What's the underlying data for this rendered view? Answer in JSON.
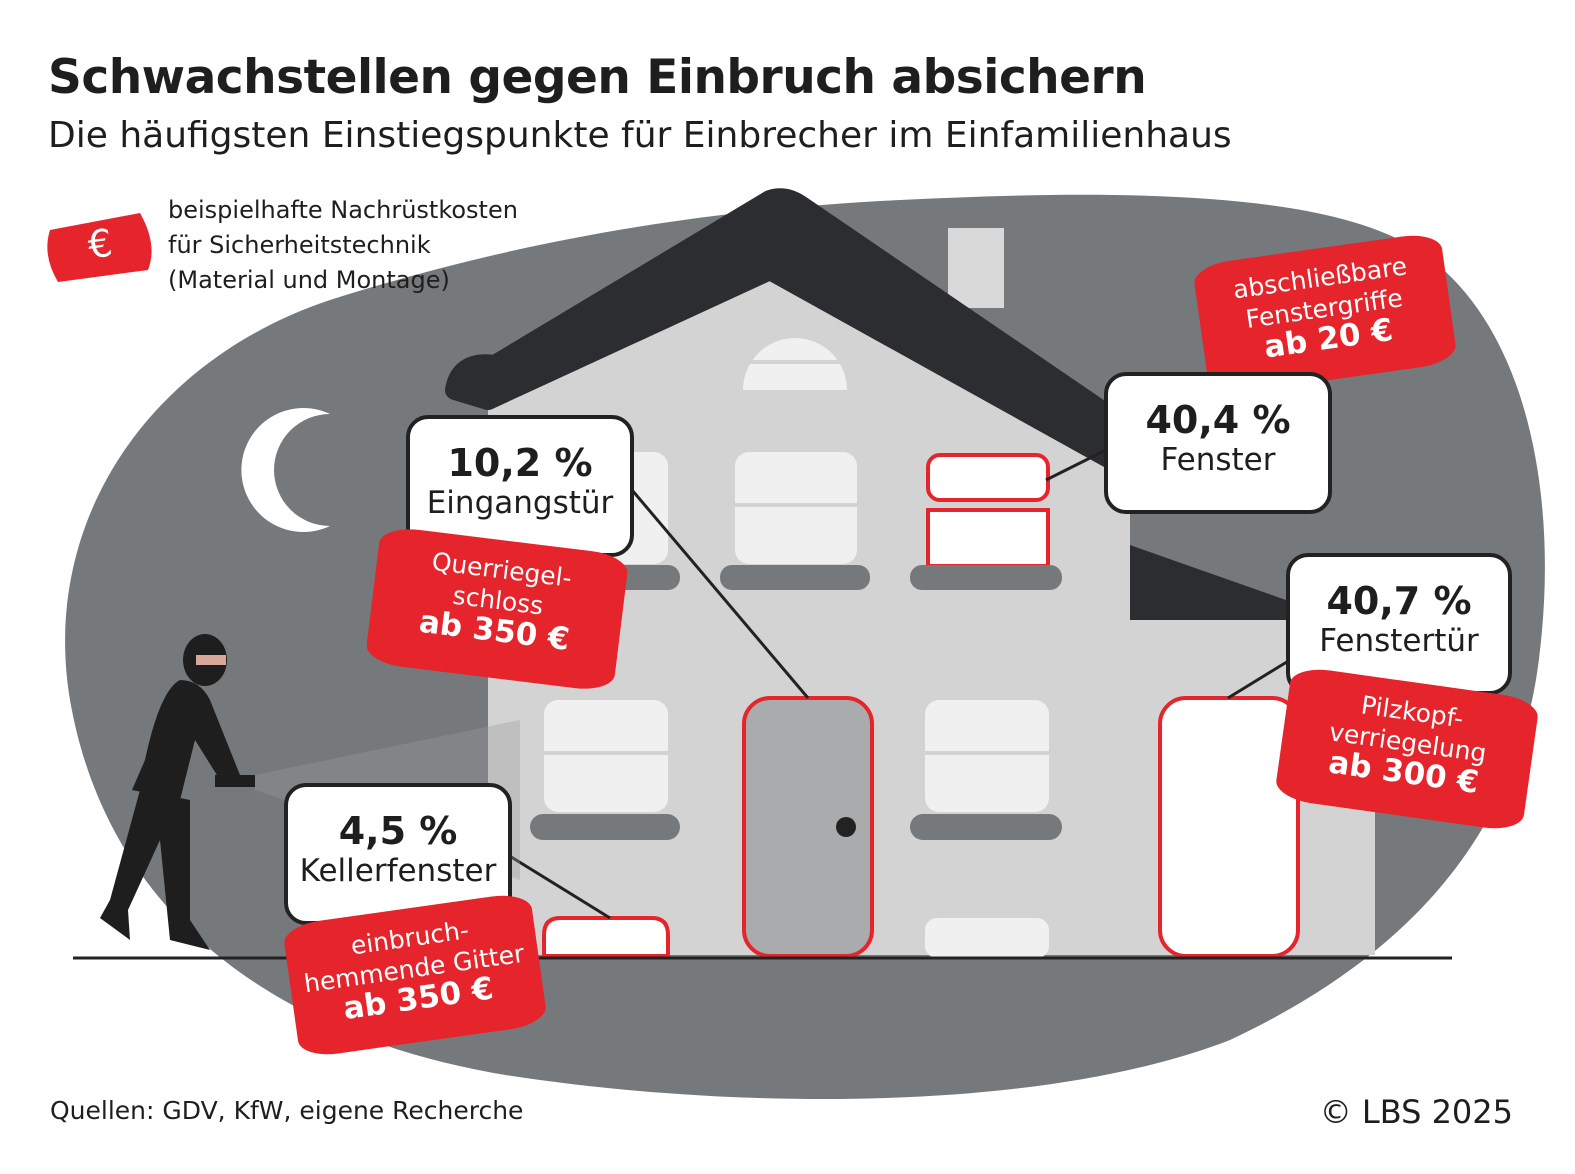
{
  "header": {
    "title": "Schwachstellen gegen Einbruch absichern",
    "subtitle": "Die häufigsten Einstiegspunkte für Einbrecher im Einfamilienhaus"
  },
  "legend": {
    "symbol": "€",
    "line1": "beispielhafte Nachrüstkosten",
    "line2": "für Sicherheitstechnik",
    "line3": "(Material und Montage)"
  },
  "entry_points": [
    {
      "percent": "10,2 %",
      "label": "Eingangstür",
      "measure_line1": "Querriegel-",
      "measure_line2": "schloss",
      "cost": "ab 350 €"
    },
    {
      "percent": "40,4 %",
      "label": "Fenster",
      "measure_line1": "abschließbare",
      "measure_line2": "Fenstergriffe",
      "cost": "ab 20 €"
    },
    {
      "percent": "40,7 %",
      "label": "Fenstertür",
      "measure_line1": "Pilzkopf-",
      "measure_line2": "verriegelung",
      "cost": "ab 300 €"
    },
    {
      "percent": "4,5 %",
      "label": "Kellerfenster",
      "measure_line1": "einbruch-",
      "measure_line2": "hemmende Gitter",
      "cost": "ab 350 €"
    }
  ],
  "footer": {
    "source": "Quellen: GDV, KfW, eigene Recherche",
    "copyright": "© LBS 2025"
  },
  "colors": {
    "accent_red": "#e5242b",
    "dark": "#2b2d30",
    "night_gray": "#76797c",
    "house_gray": "#d3d3d3"
  }
}
